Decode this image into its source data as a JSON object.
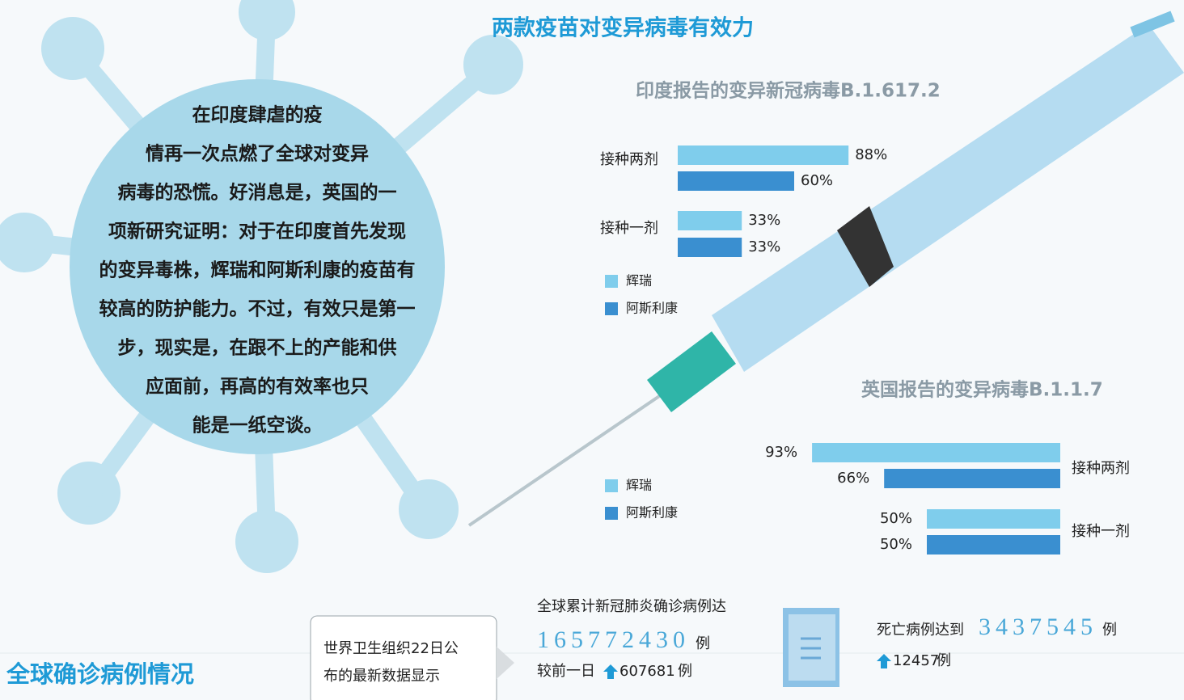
{
  "title": "两款疫苗对变异病毒有效力",
  "intro": {
    "lines": [
      "在印度肆虐的疫",
      "情再一次点燃了全球对变异",
      "病毒的恐慌。好消息是，英国的一",
      "项新研究证明：对于在印度首先发现",
      "的变异毒株，辉瑞和阿斯利康的疫苗有",
      "较高的防护能力。不过，有效只是第一",
      "步，现实是，在跟不上的产能和供",
      "应面前，再高的有效率也只",
      "能是一纸空谈。"
    ]
  },
  "chart_data": [
    {
      "type": "bar",
      "title": "印度报告的变异新冠病毒B.1.617.2",
      "categories": [
        "接种两剂",
        "接种一剂"
      ],
      "series": [
        {
          "name": "辉瑞",
          "color": "#7fcdec",
          "values": [
            88,
            33
          ],
          "value_labels": [
            "88%",
            "33%"
          ]
        },
        {
          "name": "阿斯利康",
          "color": "#3a8fd0",
          "values": [
            60,
            33
          ],
          "value_labels": [
            "60%",
            "33%"
          ]
        }
      ]
    },
    {
      "type": "bar",
      "title": "英国报告的变异病毒B.1.1.7",
      "categories": [
        "接种两剂",
        "接种一剂"
      ],
      "series": [
        {
          "name": "辉瑞",
          "color": "#7fcdec",
          "values": [
            93,
            50
          ],
          "value_labels": [
            "93%",
            "50%"
          ]
        },
        {
          "name": "阿斯利康",
          "color": "#3a8fd0",
          "values": [
            66,
            50
          ],
          "value_labels": [
            "66%",
            "50%"
          ]
        }
      ]
    }
  ],
  "section_title": "全球确诊病例情况",
  "source": {
    "lines": [
      "世界卫生组织22日公",
      "布的最新数据显示"
    ]
  },
  "cases": {
    "label": "全球累计新冠肺炎确诊病例达",
    "total": 165772430,
    "unit": "例",
    "change_label": "较前一日",
    "change": 607681,
    "change_unit": "例"
  },
  "deaths": {
    "label": "死亡病例达到",
    "total": 3437545,
    "unit": "例",
    "change": 12457,
    "change_unit": "例"
  }
}
